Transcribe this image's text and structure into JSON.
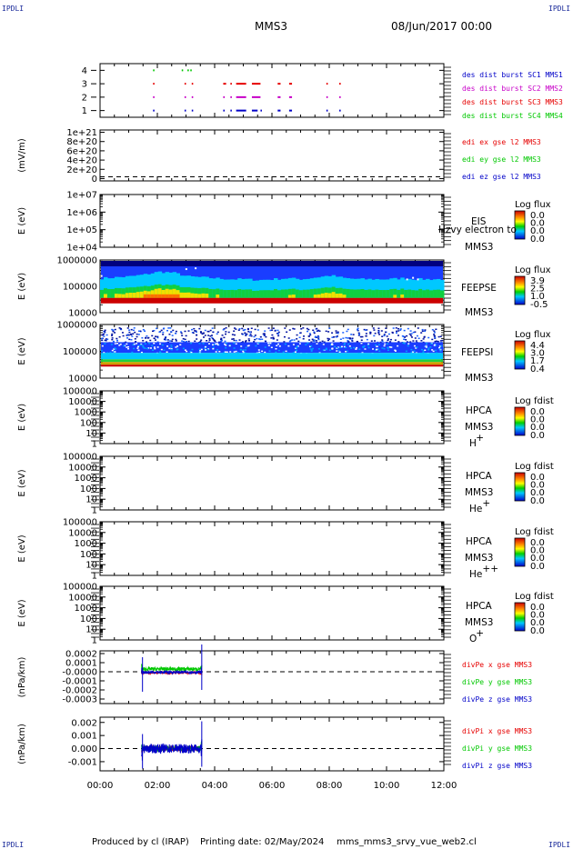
{
  "header": {
    "corner_left": "IPDLI",
    "corner_right": "IPDLI",
    "spacecraft": "MMS3",
    "datetime": "08/Jun/2017 00:00"
  },
  "footer": {
    "produced_by": "Produced by cl (IRAP)",
    "printing_date": "Printing date: 02/May/2024",
    "script": "mms_mms3_srvy_vue_web2.cl"
  },
  "time_axis": {
    "ticks": [
      "00:00",
      "02:00",
      "04:00",
      "06:00",
      "08:00",
      "10:00",
      "12:00"
    ],
    "range_hours": [
      0,
      12
    ]
  },
  "chart_data": [
    {
      "type": "scatter",
      "panel": "burst",
      "yticks": [
        "4",
        "3",
        "2",
        "1"
      ],
      "ylim": [
        0.5,
        4.5
      ],
      "series": [
        {
          "name": "des dist burst SC1 MMS1",
          "y": 1,
          "color": "#0000c8",
          "intervals": [
            [
              1.85,
              1.9
            ],
            [
              2.95,
              3.0
            ],
            [
              3.2,
              3.25
            ],
            [
              4.3,
              4.35
            ],
            [
              4.55,
              4.6
            ],
            [
              4.75,
              5.1
            ],
            [
              5.3,
              5.5
            ],
            [
              5.6,
              5.65
            ],
            [
              6.2,
              6.3
            ],
            [
              6.6,
              6.7
            ],
            [
              7.9,
              7.95
            ],
            [
              8.35,
              8.4
            ]
          ]
        },
        {
          "name": "des dist burst SC2 MMS2",
          "y": 2,
          "color": "#c800c8",
          "intervals": [
            [
              1.85,
              1.9
            ],
            [
              2.95,
              3.0
            ],
            [
              3.2,
              3.25
            ],
            [
              4.3,
              4.35
            ],
            [
              4.55,
              4.6
            ],
            [
              4.75,
              5.1
            ],
            [
              5.3,
              5.6
            ],
            [
              6.2,
              6.3
            ],
            [
              6.6,
              6.7
            ],
            [
              7.9,
              7.95
            ],
            [
              8.35,
              8.4
            ]
          ]
        },
        {
          "name": "des dist burst SC3 MMS3",
          "y": 3,
          "color": "#e60000",
          "intervals": [
            [
              1.85,
              1.9
            ],
            [
              2.95,
              3.0
            ],
            [
              3.2,
              3.25
            ],
            [
              4.3,
              4.4
            ],
            [
              4.55,
              4.6
            ],
            [
              4.75,
              5.1
            ],
            [
              5.3,
              5.6
            ],
            [
              6.2,
              6.3
            ],
            [
              6.6,
              6.7
            ],
            [
              7.9,
              7.95
            ],
            [
              8.35,
              8.4
            ]
          ]
        },
        {
          "name": "des dist burst SC4 MMS4",
          "y": 4,
          "color": "#00c800",
          "intervals": [
            [
              1.85,
              1.9
            ],
            [
              2.85,
              2.9
            ],
            [
              3.05,
              3.1
            ],
            [
              3.15,
              3.2
            ]
          ]
        }
      ]
    },
    {
      "type": "line",
      "panel": "edi",
      "ylabel": "(mV/m)",
      "yticks": [
        "1e+21",
        "8e+20",
        "6e+20",
        "4e+20",
        "2e+20",
        "0"
      ],
      "ylim": [
        -5e+19,
        1.05e+21
      ],
      "zero_line": true,
      "series": [
        {
          "name": "edi ex gse l2 MMS3",
          "color": "#e60000"
        },
        {
          "name": "edi ey gse l2 MMS3",
          "color": "#00c800"
        },
        {
          "name": "edi ez gse l2 MMS3",
          "color": "#0000c8"
        }
      ]
    },
    {
      "type": "heatmap",
      "panel": "eis",
      "ylabel": "E (eV)",
      "yticks": [
        "1e+07",
        "1e+06",
        "1e+05",
        "1e+04"
      ],
      "instrument": "EIS",
      "overlay": "Hzvy electron to",
      "spacecraft": "MMS3",
      "colorbar": {
        "title": "Log flux",
        "values": [
          "0.0",
          "0.0",
          "0.0",
          "0.0"
        ]
      }
    },
    {
      "type": "heatmap",
      "panel": "feeps_e",
      "ylabel": "E (eV)",
      "yticks": [
        "1000000",
        "100000",
        "10000"
      ],
      "ylim_log": [
        4,
        6.2
      ],
      "instrument": "FEEPSE",
      "spacecraft": "MMS3",
      "colorbar": {
        "title": "Log flux",
        "values": [
          "3.9",
          "2.5",
          "1.0",
          "-0.5"
        ]
      },
      "profile": {
        "hours": [
          0,
          0.5,
          1,
          1.5,
          2,
          2.5,
          3,
          3.5,
          4,
          4.5,
          5,
          5.5,
          6,
          6.5,
          7,
          7.5,
          8,
          8.5,
          9,
          9.5,
          10,
          10.5,
          11,
          11.5,
          12
        ],
        "yellow_level": [
          0.35,
          0.4,
          0.45,
          0.55,
          0.7,
          0.65,
          0.45,
          0.4,
          0.35,
          0.3,
          0.3,
          0.25,
          0.3,
          0.35,
          0.3,
          0.4,
          0.5,
          0.35,
          0.3,
          0.3,
          0.3,
          0.35,
          0.3,
          0.3,
          0.3
        ]
      }
    },
    {
      "type": "heatmap",
      "panel": "feeps_i",
      "ylabel": "E (eV)",
      "yticks": [
        "1000000",
        "100000",
        "10000"
      ],
      "ylim_log": [
        4,
        6
      ],
      "instrument": "FEEPSI",
      "spacecraft": "MMS3",
      "colorbar": {
        "title": "Log flux",
        "values": [
          "4.4",
          "3.0",
          "1.7",
          "0.4"
        ]
      }
    },
    {
      "type": "heatmap",
      "panel": "hpca_h",
      "ylabel": "E (eV)",
      "yticks": [
        "100000",
        "10000",
        "1000",
        "100",
        "10",
        "1"
      ],
      "instrument": "HPCA",
      "spacecraft": "MMS3",
      "species": "H",
      "species_charge": "+",
      "colorbar": {
        "title": "Log fdist",
        "values": [
          "0.0",
          "0.0",
          "0.0",
          "0.0"
        ]
      }
    },
    {
      "type": "heatmap",
      "panel": "hpca_he1",
      "ylabel": "E (eV)",
      "yticks": [
        "100000",
        "10000",
        "1000",
        "100",
        "10",
        "1"
      ],
      "instrument": "HPCA",
      "spacecraft": "MMS3",
      "species": "He",
      "species_charge": "+",
      "colorbar": {
        "title": "Log fdist",
        "values": [
          "0.0",
          "0.0",
          "0.0",
          "0.0"
        ]
      }
    },
    {
      "type": "heatmap",
      "panel": "hpca_he2",
      "ylabel": "E (eV)",
      "yticks": [
        "100000",
        "10000",
        "1000",
        "100",
        "10",
        "1"
      ],
      "instrument": "HPCA",
      "spacecraft": "MMS3",
      "species": "He",
      "species_charge": "++",
      "colorbar": {
        "title": "Log fdist",
        "values": [
          "0.0",
          "0.0",
          "0.0",
          "0.0"
        ]
      }
    },
    {
      "type": "heatmap",
      "panel": "hpca_o",
      "ylabel": "E (eV)",
      "yticks": [
        "100000",
        "10000",
        "1000",
        "100",
        "10",
        "1"
      ],
      "instrument": "HPCA",
      "spacecraft": "MMS3",
      "species": "O",
      "species_charge": "+",
      "colorbar": {
        "title": "Log fdist",
        "values": [
          "0.0",
          "0.0",
          "0.0",
          "0.0"
        ]
      }
    },
    {
      "type": "line",
      "panel": "divpe",
      "ylabel": "(nPa/km)",
      "yticks": [
        "0.0002",
        "0.0001",
        "-0.0000",
        "-0.0001",
        "-0.0002",
        "-0.0003"
      ],
      "ylim": [
        -0.00035,
        0.00023
      ],
      "zero_line": true,
      "data_span_hours": [
        1.45,
        3.55
      ],
      "series": [
        {
          "name": "divPe x gse MMS3",
          "color": "#e60000",
          "level": -1e-05,
          "noise": 1.2e-05
        },
        {
          "name": "divPe y gse MMS3",
          "color": "#00c800",
          "level": 3e-05,
          "noise": 2e-05
        },
        {
          "name": "divPe z gse MMS3",
          "color": "#0000c8",
          "level": -5e-06,
          "noise": 1.5e-05
        }
      ]
    },
    {
      "type": "line",
      "panel": "divpi",
      "ylabel": "(nPa/km)",
      "yticks": [
        "0.002",
        "0.001",
        "0.000",
        "-0.001"
      ],
      "ylim": [
        -0.0017,
        0.0024
      ],
      "zero_line": true,
      "data_span_hours": [
        1.45,
        3.55
      ],
      "series": [
        {
          "name": "divPi x gse MMS3",
          "color": "#e60000",
          "level": 0.0,
          "noise": 0.0002
        },
        {
          "name": "divPi y gse MMS3",
          "color": "#00c800",
          "level": 0.0,
          "noise": 0.0002
        },
        {
          "name": "divPi z gse MMS3",
          "color": "#0000c8",
          "level": 0.0,
          "noise": 0.00035
        }
      ]
    }
  ]
}
